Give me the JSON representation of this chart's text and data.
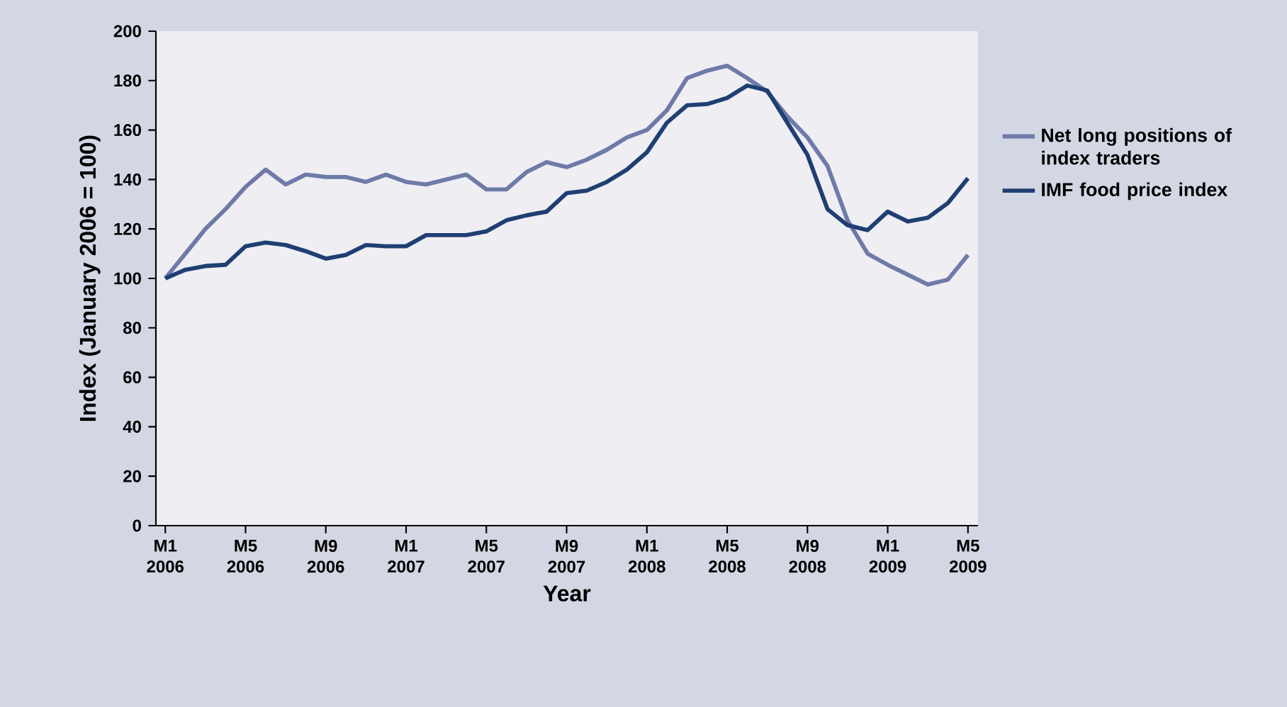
{
  "chart_data": {
    "type": "line",
    "xlabel": "Year",
    "ylabel": "Index (January 2006 = 100)",
    "x": [
      "2006-01",
      "2006-02",
      "2006-03",
      "2006-04",
      "2006-05",
      "2006-06",
      "2006-07",
      "2006-08",
      "2006-09",
      "2006-10",
      "2006-11",
      "2006-12",
      "2007-01",
      "2007-02",
      "2007-03",
      "2007-04",
      "2007-05",
      "2007-06",
      "2007-07",
      "2007-08",
      "2007-09",
      "2007-10",
      "2007-11",
      "2007-12",
      "2008-01",
      "2008-02",
      "2008-03",
      "2008-04",
      "2008-05",
      "2008-06",
      "2008-07",
      "2008-08",
      "2008-09",
      "2008-10",
      "2008-11",
      "2008-12",
      "2009-01",
      "2009-02",
      "2009-03",
      "2009-04",
      "2009-05"
    ],
    "series": [
      {
        "name": "Net long positions of index traders",
        "color": "#6e7aa8",
        "values": [
          100,
          110,
          120,
          128,
          137,
          144,
          138,
          142,
          141,
          141,
          139,
          142,
          139,
          138,
          140,
          142,
          136,
          136,
          143,
          147,
          145,
          148,
          152,
          157,
          160,
          168,
          181,
          184,
          186,
          181,
          175.5,
          165.5,
          157,
          145.5,
          123.5,
          110,
          105.5,
          101.5,
          97.5,
          99.5,
          109.5
        ]
      },
      {
        "name": "IMF food price index",
        "color": "#1f3f73",
        "values": [
          100,
          103.5,
          105,
          105.5,
          113,
          114.5,
          113.5,
          111,
          108,
          109.5,
          113.5,
          113,
          113,
          117.5,
          117.5,
          117.5,
          119,
          123.5,
          125.5,
          127,
          134.5,
          135.5,
          139,
          144,
          151,
          163,
          170,
          170.5,
          173,
          178,
          176,
          163,
          150,
          128,
          121.5,
          119.5,
          127,
          123,
          124.5,
          130.5,
          140.5
        ]
      }
    ],
    "xlim": [
      "2005-12-17",
      "2009-05-16"
    ],
    "xticks": [
      {
        "value": "2006-01",
        "label": "M1 2006"
      },
      {
        "value": "2006-05",
        "label": "M5 2006"
      },
      {
        "value": "2006-09",
        "label": "M9 2006"
      },
      {
        "value": "2007-01",
        "label": "M1 2007"
      },
      {
        "value": "2007-05",
        "label": "M5 2007"
      },
      {
        "value": "2007-09",
        "label": "M9 2007"
      },
      {
        "value": "2008-01",
        "label": "M1 2008"
      },
      {
        "value": "2008-05",
        "label": "M5 2008"
      },
      {
        "value": "2008-09",
        "label": "M9 2008"
      },
      {
        "value": "2009-01",
        "label": "M1 2009"
      },
      {
        "value": "2009-05",
        "label": "M5 2009"
      }
    ],
    "ylim": [
      0,
      200
    ],
    "yticks": [
      0,
      20,
      40,
      60,
      80,
      100,
      120,
      140,
      160,
      180,
      200
    ],
    "grid": false,
    "legend": "right",
    "marker": "none",
    "line_style": "solid"
  }
}
